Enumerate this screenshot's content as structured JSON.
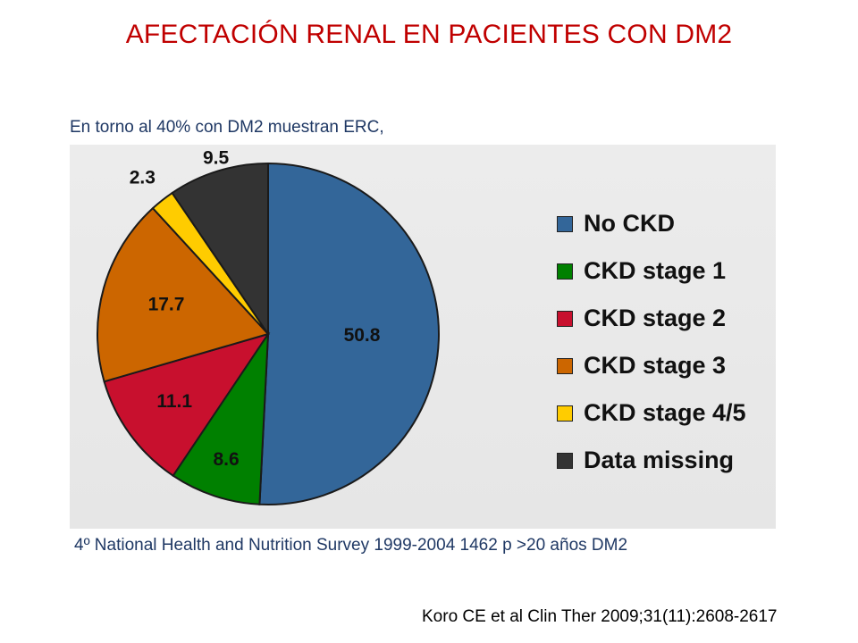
{
  "slide": {
    "title": "AFECTACIÓN RENAL EN PACIENTES CON DM2",
    "subtitle": "En torno al 40% con DM2 muestran ERC,",
    "source_note": "4º National Health and Nutrition Survey 1999-2004 1462 p >20 años DM2",
    "citation": "Koro CE et al Clin Ther 2009;31(11):2608-2617"
  },
  "chart_data": {
    "type": "pie",
    "title": "",
    "legend_position": "right",
    "start": "top, clockwise",
    "slices": [
      {
        "name": "No CKD",
        "value": 50.8,
        "label": "50.8",
        "color": "#336699"
      },
      {
        "name": "CKD stage 1",
        "value": 8.6,
        "label": "8.6",
        "color": "#008000"
      },
      {
        "name": "CKD stage 2",
        "value": 11.1,
        "label": "11.1",
        "color": "#c8102e"
      },
      {
        "name": "CKD stage 3",
        "value": 17.7,
        "label": "17.7",
        "color": "#cc6600"
      },
      {
        "name": "CKD stage 4/5",
        "value": 2.3,
        "label": "2.3",
        "color": "#ffcc00"
      },
      {
        "name": "Data missing",
        "value": 9.5,
        "label": "9.5",
        "color": "#333333"
      }
    ]
  }
}
